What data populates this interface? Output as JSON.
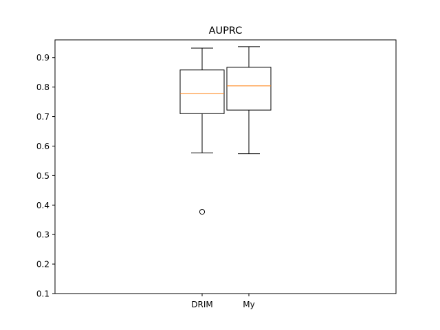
{
  "chart_data": {
    "type": "box",
    "title": "AUPRC",
    "xlabel": "",
    "ylabel": "",
    "ylim": [
      0.1,
      0.96
    ],
    "yticks": [
      0.1,
      0.2,
      0.3,
      0.4,
      0.5,
      0.6,
      0.7,
      0.8,
      0.9
    ],
    "ytick_labels": [
      "0.1",
      "0.2",
      "0.3",
      "0.4",
      "0.5",
      "0.6",
      "0.7",
      "0.8",
      "0.9"
    ],
    "categories": [
      "DRIM",
      "My"
    ],
    "boxes": [
      {
        "label": "DRIM",
        "whisker_low": 0.577,
        "q1": 0.71,
        "median": 0.778,
        "q3": 0.858,
        "whisker_high": 0.932,
        "outliers": [
          0.377
        ]
      },
      {
        "label": "My",
        "whisker_low": 0.574,
        "q1": 0.722,
        "median": 0.804,
        "q3": 0.867,
        "whisker_high": 0.937,
        "outliers": []
      }
    ],
    "grid": false,
    "colors": {
      "box": "#000000",
      "median": "#ff7f0e",
      "outlier": "#000000"
    }
  }
}
